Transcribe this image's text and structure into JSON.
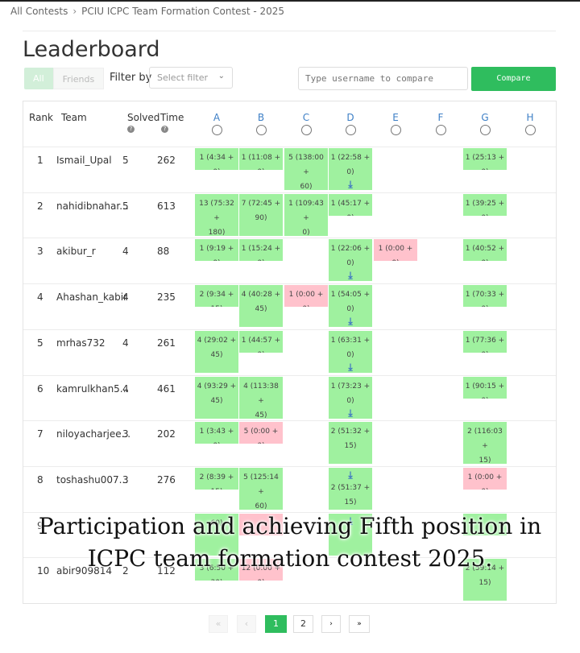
{
  "breadcrumb": {
    "root": "All Contests",
    "separator": "›",
    "current": "PCIU ICPC Team Formation Contest - 2025"
  },
  "page_title": "Leaderboard",
  "view_toggle": {
    "all": "All",
    "friends": "Friends"
  },
  "filter": {
    "label": "Filter by",
    "placeholder": "Select filter"
  },
  "compare": {
    "placeholder": "Type username to compare",
    "button": "Compare"
  },
  "columns": {
    "rank": "Rank",
    "team": "Team",
    "solved": "Solved",
    "time": "Time"
  },
  "problems": [
    "A",
    "B",
    "C",
    "D",
    "E",
    "F",
    "G",
    "H"
  ],
  "rows": [
    {
      "rank": "1",
      "team": "Ismail_Upal",
      "solved": "5",
      "time": "262"
    },
    {
      "rank": "2",
      "team": "nahidibnahar...",
      "solved": "5",
      "time": "613"
    },
    {
      "rank": "3",
      "team": "akibur_r",
      "solved": "4",
      "time": "88"
    },
    {
      "rank": "4",
      "team": "Ahashan_kabir",
      "solved": "4",
      "time": "235"
    },
    {
      "rank": "5",
      "team": "mrhas732",
      "solved": "4",
      "time": "261"
    },
    {
      "rank": "6",
      "team": "kamrulkhan5...",
      "solved": "4",
      "time": "461"
    },
    {
      "rank": "7",
      "team": "niloyacharjee...",
      "solved": "3",
      "time": "202"
    },
    {
      "rank": "8",
      "team": "toshashu007...",
      "solved": "3",
      "time": "276"
    },
    {
      "rank": "9",
      "team": "",
      "solved": "",
      "time": ""
    },
    {
      "rank": "10",
      "team": "abir909814",
      "solved": "2",
      "time": "112"
    }
  ],
  "cells": [
    {
      "row": 0,
      "col": 0,
      "status": "accepted",
      "l1": "1 (4:34 + 0)",
      "l2": ""
    },
    {
      "row": 0,
      "col": 1,
      "status": "accepted",
      "l1": "1 (11:08 + 0)",
      "l2": ""
    },
    {
      "row": 0,
      "col": 2,
      "status": "accepted",
      "l1": "5 (138:00 +",
      "l2": "60)"
    },
    {
      "row": 0,
      "col": 3,
      "status": "accepted",
      "l1": "1 (22:58 + 0)",
      "l2": "",
      "download": true
    },
    {
      "row": 0,
      "col": 6,
      "status": "accepted",
      "l1": "1 (25:13 + 0)",
      "l2": ""
    },
    {
      "row": 1,
      "col": 0,
      "status": "accepted",
      "l1": "13 (75:32 +",
      "l2": "180)"
    },
    {
      "row": 1,
      "col": 1,
      "status": "accepted",
      "l1": "7 (72:45 +",
      "l2": "90)"
    },
    {
      "row": 1,
      "col": 2,
      "status": "accepted",
      "l1": "1 (109:43 +",
      "l2": "0)"
    },
    {
      "row": 1,
      "col": 3,
      "status": "accepted",
      "l1": "1 (45:17 + 0)",
      "l2": ""
    },
    {
      "row": 1,
      "col": 6,
      "status": "accepted",
      "l1": "1 (39:25 + 0)",
      "l2": ""
    },
    {
      "row": 2,
      "col": 0,
      "status": "accepted",
      "l1": "1 (9:19 + 0)",
      "l2": ""
    },
    {
      "row": 2,
      "col": 1,
      "status": "accepted",
      "l1": "1 (15:24 + 0)",
      "l2": ""
    },
    {
      "row": 2,
      "col": 3,
      "status": "accepted",
      "l1": "1 (22:06 + 0)",
      "l2": "",
      "download": true
    },
    {
      "row": 2,
      "col": 4,
      "status": "wrong",
      "l1": "1 (0:00 + 0)",
      "l2": ""
    },
    {
      "row": 2,
      "col": 6,
      "status": "accepted",
      "l1": "1 (40:52 + 0)",
      "l2": ""
    },
    {
      "row": 3,
      "col": 0,
      "status": "accepted",
      "l1": "2 (9:34 + 15)",
      "l2": ""
    },
    {
      "row": 3,
      "col": 1,
      "status": "accepted",
      "l1": "4 (40:28 +",
      "l2": "45)"
    },
    {
      "row": 3,
      "col": 2,
      "status": "wrong",
      "l1": "1 (0:00 + 0)",
      "l2": ""
    },
    {
      "row": 3,
      "col": 3,
      "status": "accepted",
      "l1": "1 (54:05 + 0)",
      "l2": "",
      "download": true
    },
    {
      "row": 3,
      "col": 6,
      "status": "accepted",
      "l1": "1 (70:33 + 0)",
      "l2": ""
    },
    {
      "row": 4,
      "col": 0,
      "status": "accepted",
      "l1": "4 (29:02 +",
      "l2": "45)"
    },
    {
      "row": 4,
      "col": 1,
      "status": "accepted",
      "l1": "1 (44:57 + 0)",
      "l2": ""
    },
    {
      "row": 4,
      "col": 3,
      "status": "accepted",
      "l1": "1 (63:31 + 0)",
      "l2": "",
      "download": true
    },
    {
      "row": 4,
      "col": 6,
      "status": "accepted",
      "l1": "1 (77:36 + 0)",
      "l2": ""
    },
    {
      "row": 5,
      "col": 0,
      "status": "accepted",
      "l1": "4 (93:29 +",
      "l2": "45)"
    },
    {
      "row": 5,
      "col": 1,
      "status": "accepted",
      "l1": "4 (113:38 +",
      "l2": "45)"
    },
    {
      "row": 5,
      "col": 3,
      "status": "accepted",
      "l1": "1 (73:23 + 0)",
      "l2": "",
      "download": true
    },
    {
      "row": 5,
      "col": 6,
      "status": "accepted",
      "l1": "1 (90:15 + 0)",
      "l2": ""
    },
    {
      "row": 6,
      "col": 0,
      "status": "accepted",
      "l1": "1 (3:43 + 0)",
      "l2": ""
    },
    {
      "row": 6,
      "col": 1,
      "status": "wrong",
      "l1": "5 (0:00 + 0)",
      "l2": ""
    },
    {
      "row": 6,
      "col": 3,
      "status": "accepted",
      "l1": "2 (51:32 +",
      "l2": "15)"
    },
    {
      "row": 6,
      "col": 6,
      "status": "accepted",
      "l1": "2 (116:03 +",
      "l2": "15)"
    },
    {
      "row": 7,
      "col": 0,
      "status": "accepted",
      "l1": "2 (8:39 + 15)",
      "l2": ""
    },
    {
      "row": 7,
      "col": 1,
      "status": "accepted",
      "l1": "5 (125:14 +",
      "l2": "60)"
    },
    {
      "row": 7,
      "col": 3,
      "status": "accepted",
      "l1": "2 (51:37 +",
      "l2": "15)",
      "download_top": true
    },
    {
      "row": 7,
      "col": 6,
      "status": "wrong",
      "l1": "1 (0:00 + 0)",
      "l2": ""
    },
    {
      "row": 8,
      "col": 0,
      "status": "accepted",
      "l1": "",
      "l2": "60)"
    },
    {
      "row": 8,
      "col": 1,
      "status": "wrong",
      "l1": "",
      "l2": ""
    },
    {
      "row": 8,
      "col": 3,
      "status": "accepted",
      "l1": "",
      "l2": "",
      "download": true
    },
    {
      "row": 8,
      "col": 6,
      "status": "accepted",
      "l1": "",
      "l2": ""
    },
    {
      "row": 9,
      "col": 0,
      "status": "accepted",
      "l1": "3 (6:50 + 30)",
      "l2": ""
    },
    {
      "row": 9,
      "col": 1,
      "status": "wrong",
      "l1": "12 (0:00 + 0)",
      "l2": ""
    },
    {
      "row": 9,
      "col": 6,
      "status": "accepted",
      "l1": "2 (59:14 +",
      "l2": "15)"
    }
  ],
  "pagination": {
    "first": "«",
    "prev": "‹",
    "pages": [
      "1",
      "2"
    ],
    "active": "1",
    "next": "›",
    "last": "»"
  },
  "caption": {
    "line1": "Participation and achieving Fifth position in",
    "line2": "ICPC team formation contest 2025."
  },
  "colors": {
    "accepted": "#9ff19f",
    "wrong": "#ffc2cc",
    "brand": "#2fbd5e",
    "problem_header": "#3d7fc6"
  },
  "icons": {
    "help": "question-circle-icon",
    "download": "download-icon",
    "select": "chevron-down-icon"
  }
}
